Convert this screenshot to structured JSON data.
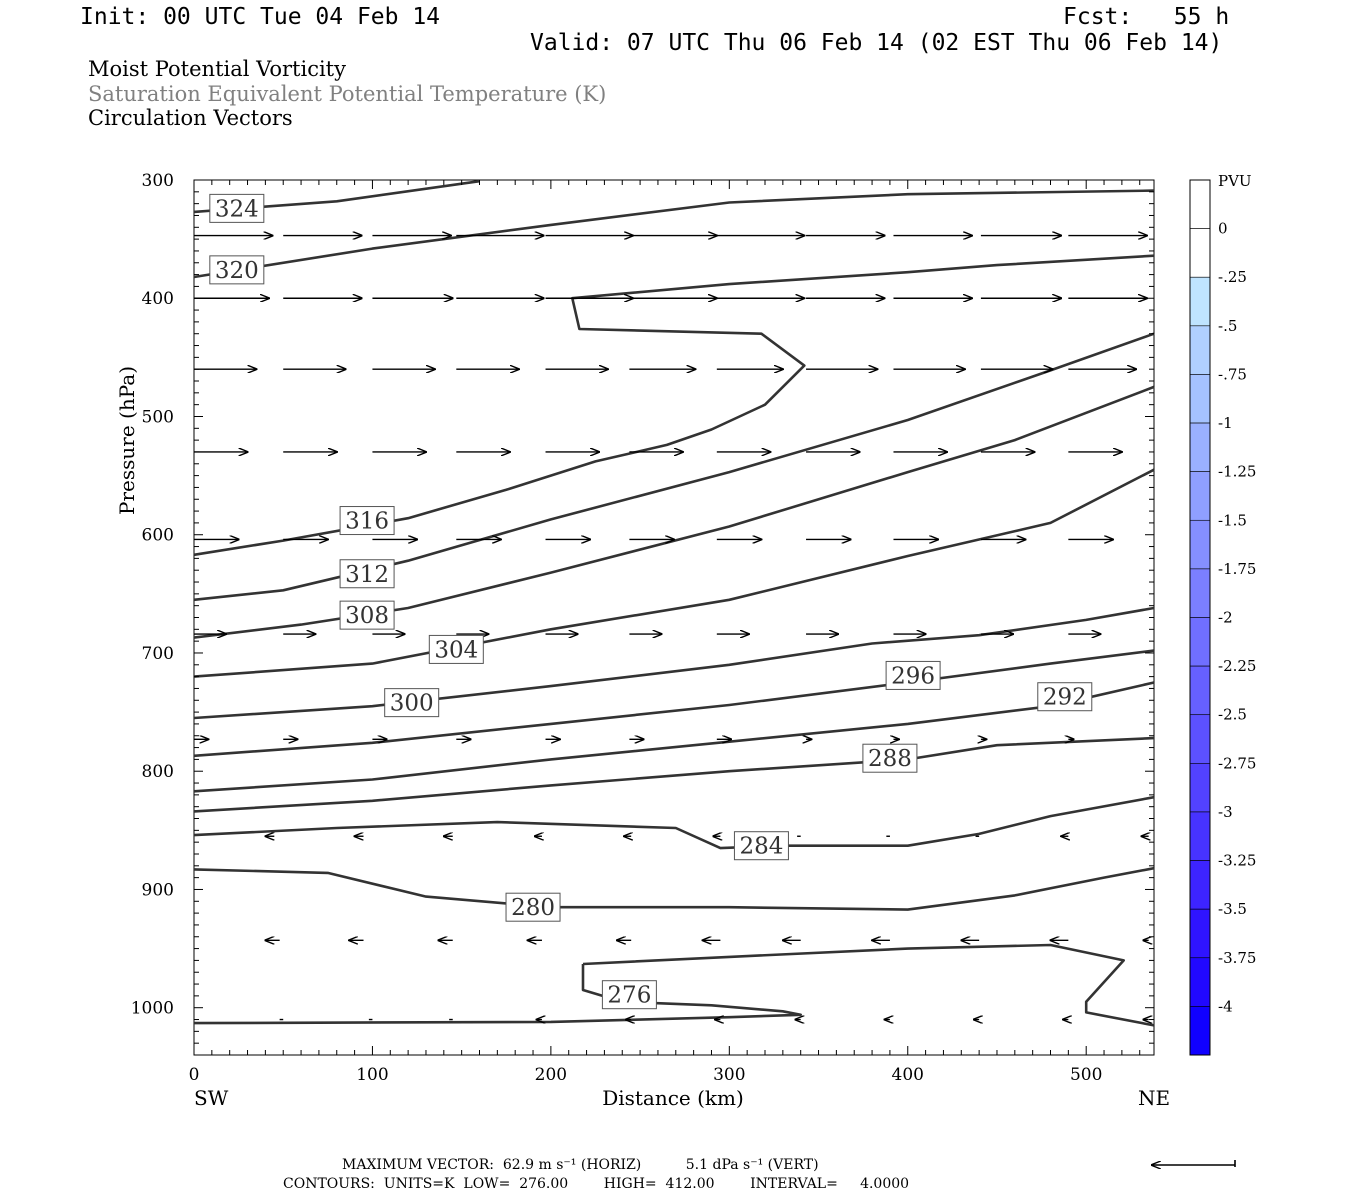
{
  "header": {
    "init": "Init: 00 UTC Tue 04 Feb 14",
    "fcst": "Fcst:   55 h",
    "valid": "Valid: 07 UTC Thu 06 Feb 14 (02 EST Thu 06 Feb 14)"
  },
  "titles": {
    "line1": "Moist Potential Vorticity",
    "line2": "Saturation Equivalent Potential Temperature (K)",
    "line3": "Circulation Vectors"
  },
  "footer": {
    "max_vector": "MAXIMUM VECTOR:  62.9 m s⁻¹ (HORIZ)          5.1 dPa s⁻¹ (VERT)",
    "contours": "CONTOURS:  UNITS=K  LOW=  276.00        HIGH=  412.00        INTERVAL=     4.0000"
  },
  "colors": {
    "contour": "#333333",
    "label_secondary": "#808080",
    "colorbar": [
      "#ffffff",
      "#ffffff",
      "#bfe4ff",
      "#b0d0ff",
      "#a5c2ff",
      "#9ab0ff",
      "#8f9fff",
      "#858fff",
      "#7b7fff",
      "#706fff",
      "#6660ff",
      "#5c51ff",
      "#5242ff",
      "#4733ff",
      "#3d24ff",
      "#2f14ff",
      "#2108ff",
      "#1000ff"
    ]
  },
  "chart_data": {
    "type": "contour-cross-section",
    "xlabel": "Distance (km)",
    "ylabel": "Pressure (hPa)",
    "x_ticks": [
      0,
      100,
      200,
      300,
      400,
      500
    ],
    "y_ticks": [
      300,
      400,
      500,
      600,
      700,
      800,
      900,
      1000
    ],
    "xlim": [
      0,
      538
    ],
    "ylim": [
      1040,
      300
    ],
    "left_end_label": "SW",
    "right_end_label": "NE",
    "colorbar": {
      "unit": "PVU",
      "labels": [
        "0",
        "-.25",
        "-.5",
        "-.75",
        "-1",
        "-1.25",
        "-1.5",
        "-1.75",
        "-2",
        "-2.25",
        "-2.5",
        "-2.75",
        "-3",
        "-3.25",
        "-3.5",
        "-3.75",
        "-4"
      ]
    },
    "contours": [
      {
        "value": 324,
        "label": "324",
        "label_pos": [
          24,
          324
        ],
        "points": [
          [
            0,
            327
          ],
          [
            80,
            318
          ],
          [
            160,
            301
          ]
        ]
      },
      {
        "value": 320,
        "label": "320",
        "label_pos": [
          24,
          376
        ],
        "points": [
          [
            0,
            382
          ],
          [
            100,
            358
          ],
          [
            200,
            338
          ],
          [
            300,
            319
          ],
          [
            400,
            312
          ],
          [
            538,
            309
          ]
        ]
      },
      {
        "value": 316,
        "label": "316",
        "label_pos": [
          97,
          588
        ],
        "points": [
          [
            0,
            617
          ],
          [
            50,
            605
          ],
          [
            120,
            586
          ],
          [
            175,
            562
          ],
          [
            225,
            538
          ],
          [
            265,
            524
          ],
          [
            290,
            511
          ],
          [
            320,
            490
          ],
          [
            342,
            457
          ],
          [
            318,
            430
          ],
          [
            216,
            426
          ],
          [
            212,
            400
          ],
          [
            300,
            388
          ],
          [
            400,
            378
          ],
          [
            450,
            372
          ],
          [
            538,
            364
          ]
        ]
      },
      {
        "value": 312,
        "label": "312",
        "label_pos": [
          97,
          633
        ],
        "points": [
          [
            0,
            655
          ],
          [
            50,
            647
          ],
          [
            120,
            622
          ],
          [
            200,
            587
          ],
          [
            300,
            547
          ],
          [
            400,
            503
          ],
          [
            480,
            461
          ],
          [
            538,
            430
          ]
        ]
      },
      {
        "value": 308,
        "label": "308",
        "label_pos": [
          97,
          668
        ],
        "points": [
          [
            0,
            687
          ],
          [
            60,
            676
          ],
          [
            120,
            662
          ],
          [
            200,
            632
          ],
          [
            300,
            593
          ],
          [
            400,
            547
          ],
          [
            460,
            520
          ],
          [
            538,
            475
          ]
        ]
      },
      {
        "value": 304,
        "label": "304",
        "label_pos": [
          147,
          697
        ],
        "points": [
          [
            0,
            720
          ],
          [
            100,
            709
          ],
          [
            200,
            680
          ],
          [
            300,
            655
          ],
          [
            400,
            618
          ],
          [
            480,
            590
          ],
          [
            538,
            545
          ]
        ]
      },
      {
        "value": 300,
        "label": "300",
        "label_pos": [
          122,
          742
        ],
        "points": [
          [
            0,
            755
          ],
          [
            100,
            745
          ],
          [
            200,
            728
          ],
          [
            300,
            710
          ],
          [
            380,
            692
          ],
          [
            440,
            685
          ],
          [
            500,
            672
          ],
          [
            538,
            662
          ]
        ]
      },
      {
        "value": 296,
        "label": "296",
        "label_pos": [
          403,
          719
        ],
        "points": [
          [
            0,
            787
          ],
          [
            100,
            776
          ],
          [
            200,
            760
          ],
          [
            300,
            744
          ],
          [
            400,
            725
          ],
          [
            480,
            709
          ],
          [
            538,
            698
          ]
        ]
      },
      {
        "value": 292,
        "label": "292",
        "label_pos": [
          488,
          737
        ],
        "points": [
          [
            0,
            817
          ],
          [
            100,
            807
          ],
          [
            200,
            790
          ],
          [
            300,
            775
          ],
          [
            400,
            760
          ],
          [
            480,
            745
          ],
          [
            538,
            725
          ]
        ]
      },
      {
        "value": 288,
        "label": "288",
        "label_pos": [
          390,
          789
        ],
        "points": [
          [
            0,
            834
          ],
          [
            100,
            825
          ],
          [
            200,
            812
          ],
          [
            300,
            800
          ],
          [
            400,
            790
          ],
          [
            450,
            778
          ],
          [
            538,
            772
          ]
        ]
      },
      {
        "value": 284,
        "label": "284",
        "label_pos": [
          318,
          863
        ],
        "points": [
          [
            0,
            854
          ],
          [
            80,
            848
          ],
          [
            170,
            843
          ],
          [
            270,
            848
          ],
          [
            295,
            865
          ],
          [
            330,
            863
          ],
          [
            400,
            863
          ],
          [
            440,
            853
          ],
          [
            480,
            838
          ],
          [
            538,
            822
          ]
        ]
      },
      {
        "value": 280,
        "label": "280",
        "label_pos": [
          190,
          915
        ],
        "points": [
          [
            0,
            883
          ],
          [
            75,
            886
          ],
          [
            130,
            906
          ],
          [
            200,
            915
          ],
          [
            300,
            915
          ],
          [
            400,
            917
          ],
          [
            460,
            905
          ],
          [
            510,
            890
          ],
          [
            538,
            882
          ]
        ]
      },
      {
        "value": 276,
        "label": "276",
        "label_pos": [
          244,
          989
        ],
        "points": [
          [
            218,
            963
          ],
          [
            300,
            957
          ],
          [
            400,
            950
          ],
          [
            480,
            947
          ],
          [
            521,
            960
          ],
          [
            500,
            995
          ],
          [
            500,
            1004
          ],
          [
            538,
            1015
          ]
        ]
      },
      {
        "value": 276,
        "label": "",
        "label_pos": null,
        "points": [
          [
            218,
            963
          ],
          [
            218,
            985
          ],
          [
            240,
            995
          ],
          [
            290,
            998
          ],
          [
            330,
            1003
          ],
          [
            340,
            1006
          ],
          [
            300,
            1008
          ],
          [
            200,
            1012
          ],
          [
            0,
            1013
          ]
        ]
      }
    ],
    "vector_rows": [
      {
        "p": 347,
        "items": [
          [
            0,
            44
          ],
          [
            50,
            44
          ],
          [
            100,
            44
          ],
          [
            147,
            49
          ],
          [
            197,
            49
          ],
          [
            244,
            49
          ],
          [
            293,
            49
          ],
          [
            343,
            44
          ],
          [
            392,
            44
          ],
          [
            441,
            45
          ],
          [
            490,
            44
          ]
        ]
      },
      {
        "p": 400,
        "items": [
          [
            0,
            42
          ],
          [
            50,
            44
          ],
          [
            100,
            45
          ],
          [
            147,
            49
          ],
          [
            197,
            49
          ],
          [
            244,
            49
          ],
          [
            293,
            49
          ],
          [
            343,
            44
          ],
          [
            392,
            44
          ],
          [
            441,
            45
          ],
          [
            490,
            44
          ]
        ]
      },
      {
        "p": 460,
        "items": [
          [
            0,
            35
          ],
          [
            50,
            35
          ],
          [
            100,
            35
          ],
          [
            147,
            35
          ],
          [
            197,
            35
          ],
          [
            244,
            37
          ],
          [
            293,
            37
          ],
          [
            343,
            40
          ],
          [
            392,
            40
          ],
          [
            441,
            40
          ],
          [
            490,
            38
          ]
        ]
      },
      {
        "p": 530,
        "items": [
          [
            0,
            30
          ],
          [
            50,
            30
          ],
          [
            100,
            30
          ],
          [
            147,
            30
          ],
          [
            197,
            30
          ],
          [
            244,
            30
          ],
          [
            293,
            30
          ],
          [
            343,
            30
          ],
          [
            392,
            30
          ],
          [
            441,
            30
          ],
          [
            490,
            30
          ]
        ]
      },
      {
        "p": 604,
        "items": [
          [
            0,
            25
          ],
          [
            50,
            25
          ],
          [
            100,
            25
          ],
          [
            147,
            25
          ],
          [
            197,
            25
          ],
          [
            244,
            25
          ],
          [
            293,
            25
          ],
          [
            343,
            25
          ],
          [
            392,
            25
          ],
          [
            441,
            25
          ],
          [
            490,
            25
          ]
        ]
      },
      {
        "p": 684,
        "items": [
          [
            0,
            18
          ],
          [
            50,
            18
          ],
          [
            100,
            18
          ],
          [
            147,
            18
          ],
          [
            197,
            18
          ],
          [
            244,
            18
          ],
          [
            293,
            18
          ],
          [
            343,
            18
          ],
          [
            392,
            18
          ],
          [
            441,
            18
          ],
          [
            490,
            18
          ]
        ]
      },
      {
        "p": 773,
        "items": [
          [
            0,
            8
          ],
          [
            50,
            8
          ],
          [
            100,
            8
          ],
          [
            147,
            8
          ],
          [
            197,
            8
          ],
          [
            244,
            8
          ],
          [
            293,
            8
          ],
          [
            343,
            3
          ],
          [
            392,
            3
          ],
          [
            441,
            3
          ],
          [
            490,
            3
          ]
        ]
      },
      {
        "p": 855,
        "items": [
          [
            45,
            -5
          ],
          [
            95,
            -5
          ],
          [
            145,
            -5
          ],
          [
            195,
            -4
          ],
          [
            245,
            -4
          ],
          [
            295,
            -4
          ],
          [
            340,
            -2
          ],
          [
            390,
            -2
          ],
          [
            440,
            -2
          ],
          [
            490,
            -4
          ],
          [
            535,
            -4
          ]
        ]
      },
      {
        "p": 943,
        "items": [
          [
            48,
            -8
          ],
          [
            95,
            -8
          ],
          [
            145,
            -8
          ],
          [
            195,
            -8
          ],
          [
            245,
            -8
          ],
          [
            295,
            -10
          ],
          [
            340,
            -10
          ],
          [
            390,
            -10
          ],
          [
            440,
            -10
          ],
          [
            490,
            -10
          ],
          [
            535,
            -3
          ]
        ]
      },
      {
        "p": 1010,
        "items": [
          [
            50,
            -2
          ],
          [
            100,
            -2
          ],
          [
            145,
            -2
          ],
          [
            195,
            -3
          ],
          [
            245,
            -3
          ],
          [
            295,
            -3
          ],
          [
            340,
            -3
          ],
          [
            390,
            -3
          ],
          [
            440,
            -3
          ],
          [
            490,
            -3
          ],
          [
            535,
            -3
          ]
        ]
      }
    ],
    "reference_vector_length": 50
  }
}
